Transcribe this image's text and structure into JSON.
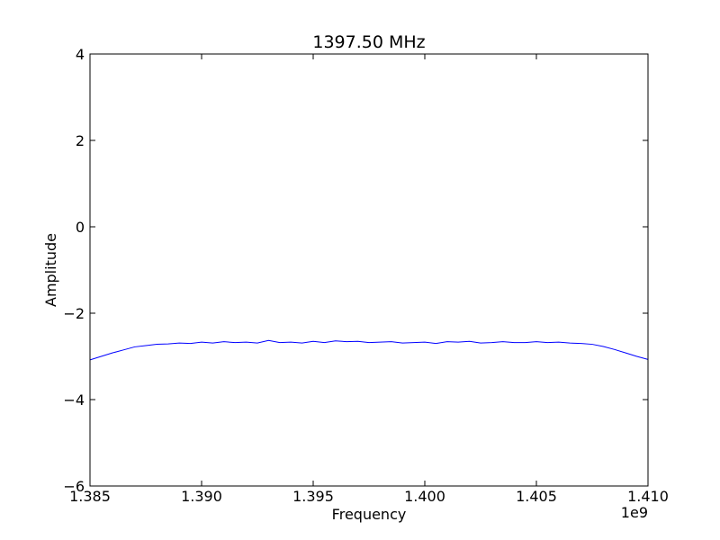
{
  "chart_data": {
    "type": "line",
    "title": "1397.50 MHz",
    "xlabel": "Frequency",
    "ylabel": "Amplitude",
    "x_offset_label": "1e9",
    "xlim": [
      1.385,
      1.41
    ],
    "ylim": [
      -6,
      4
    ],
    "grid": false,
    "legend": "none",
    "x_ticks": [
      1.385,
      1.39,
      1.395,
      1.4,
      1.405,
      1.41
    ],
    "x_tick_labels": [
      "1.385",
      "1.390",
      "1.395",
      "1.400",
      "1.405",
      "1.410"
    ],
    "y_ticks": [
      -6,
      -4,
      -2,
      0,
      2,
      4
    ],
    "y_tick_labels": [
      "−6",
      "−4",
      "−2",
      "0",
      "2",
      "4"
    ],
    "line_color": "#0000ff",
    "series": [
      {
        "x": [
          1.385,
          1.3855,
          1.386,
          1.3865,
          1.387,
          1.3875,
          1.388,
          1.3885,
          1.389,
          1.3895,
          1.39,
          1.3905,
          1.391,
          1.3915,
          1.392,
          1.3925,
          1.393,
          1.3935,
          1.394,
          1.3945,
          1.395,
          1.3955,
          1.396,
          1.3965,
          1.397,
          1.3975,
          1.398,
          1.3985,
          1.399,
          1.3995,
          1.4,
          1.4005,
          1.401,
          1.4015,
          1.402,
          1.4025,
          1.403,
          1.4035,
          1.404,
          1.4045,
          1.405,
          1.4055,
          1.406,
          1.4065,
          1.407,
          1.4075,
          1.408,
          1.4085,
          1.409,
          1.4095,
          1.41
        ],
        "y": [
          -3.08,
          -3.0,
          -2.92,
          -2.85,
          -2.78,
          -2.75,
          -2.72,
          -2.71,
          -2.69,
          -2.7,
          -2.67,
          -2.69,
          -2.66,
          -2.68,
          -2.67,
          -2.69,
          -2.63,
          -2.68,
          -2.67,
          -2.69,
          -2.65,
          -2.68,
          -2.64,
          -2.66,
          -2.65,
          -2.68,
          -2.67,
          -2.66,
          -2.69,
          -2.68,
          -2.67,
          -2.7,
          -2.66,
          -2.67,
          -2.65,
          -2.69,
          -2.68,
          -2.66,
          -2.68,
          -2.68,
          -2.66,
          -2.68,
          -2.67,
          -2.69,
          -2.7,
          -2.72,
          -2.77,
          -2.84,
          -2.92,
          -3.0,
          -3.07
        ]
      }
    ]
  }
}
